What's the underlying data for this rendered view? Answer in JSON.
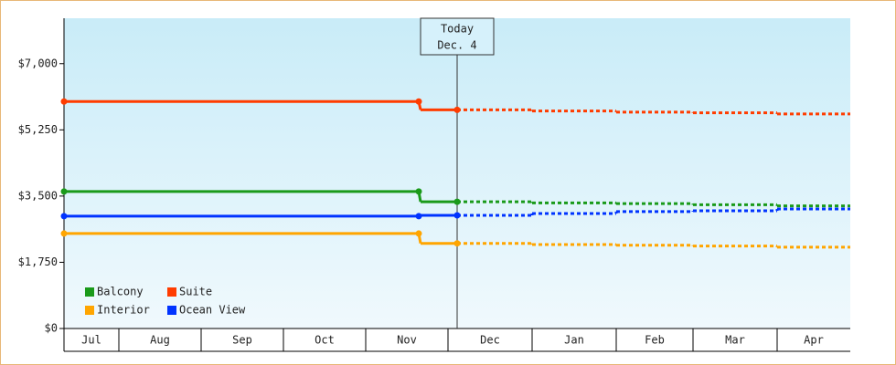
{
  "chart_data": {
    "type": "step-line",
    "categories": [
      "Jul",
      "Aug",
      "Sep",
      "Oct",
      "Nov",
      "Dec",
      "Jan",
      "Feb",
      "Mar",
      "Apr"
    ],
    "forecast_start": "Dec",
    "annotation": [
      "Today",
      "Dec. 4"
    ],
    "series": [
      {
        "name": "Balcony",
        "color": "#1a9a1a",
        "values": [
          3620,
          3620,
          3620,
          3620,
          3620,
          3350,
          3320,
          3300,
          3270,
          3240
        ]
      },
      {
        "name": "Suite",
        "color": "#ff3c00",
        "values": [
          6000,
          6000,
          6000,
          6000,
          6000,
          5780,
          5750,
          5720,
          5700,
          5670
        ]
      },
      {
        "name": "Interior",
        "color": "#ffa500",
        "values": [
          2510,
          2510,
          2510,
          2510,
          2510,
          2250,
          2220,
          2200,
          2180,
          2150
        ]
      },
      {
        "name": "Ocean View",
        "color": "#0033ff",
        "values": [
          2970,
          2970,
          2970,
          2970,
          2970,
          2990,
          3040,
          3090,
          3110,
          3160
        ]
      }
    ],
    "ylim": [
      0,
      8200
    ],
    "yticks": [
      {
        "value": 0,
        "label": "$0"
      },
      {
        "value": 1750,
        "label": "$1,750"
      },
      {
        "value": 3500,
        "label": "$3,500"
      },
      {
        "value": 5250,
        "label": "$5,250"
      },
      {
        "value": 7000,
        "label": "$7,000"
      }
    ],
    "legend": "lower left"
  }
}
